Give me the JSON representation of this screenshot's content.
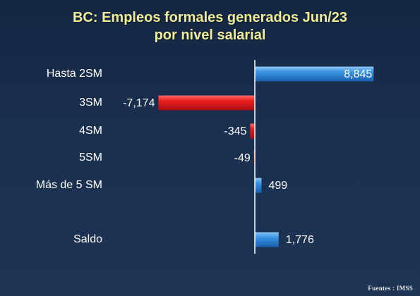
{
  "title_line1": "BC: Empleos formales generados Jun/23",
  "title_line2": "por nivel salarial",
  "source": "Fuentes : IMSS",
  "colors": {
    "title": "#f1ee98",
    "positive": "#3a8fe0",
    "negative": "#e31e1e",
    "axis": "#ffffff",
    "label": "#ffffff"
  },
  "chart_data": {
    "type": "bar",
    "orientation": "horizontal",
    "categories": [
      "Hasta 2SM",
      "3SM",
      "4SM",
      "5SM",
      "Más de 5 SM",
      "Saldo"
    ],
    "values": [
      8845,
      -7174,
      -345,
      -49,
      499,
      1776
    ],
    "value_labels": [
      "8,845",
      "-7,174",
      "-345",
      "-49",
      "499",
      "1,776"
    ],
    "title": "BC: Empleos formales generados Jun/23 por nivel salarial",
    "xlabel": "",
    "ylabel": "",
    "grid": false,
    "legend": "none"
  }
}
